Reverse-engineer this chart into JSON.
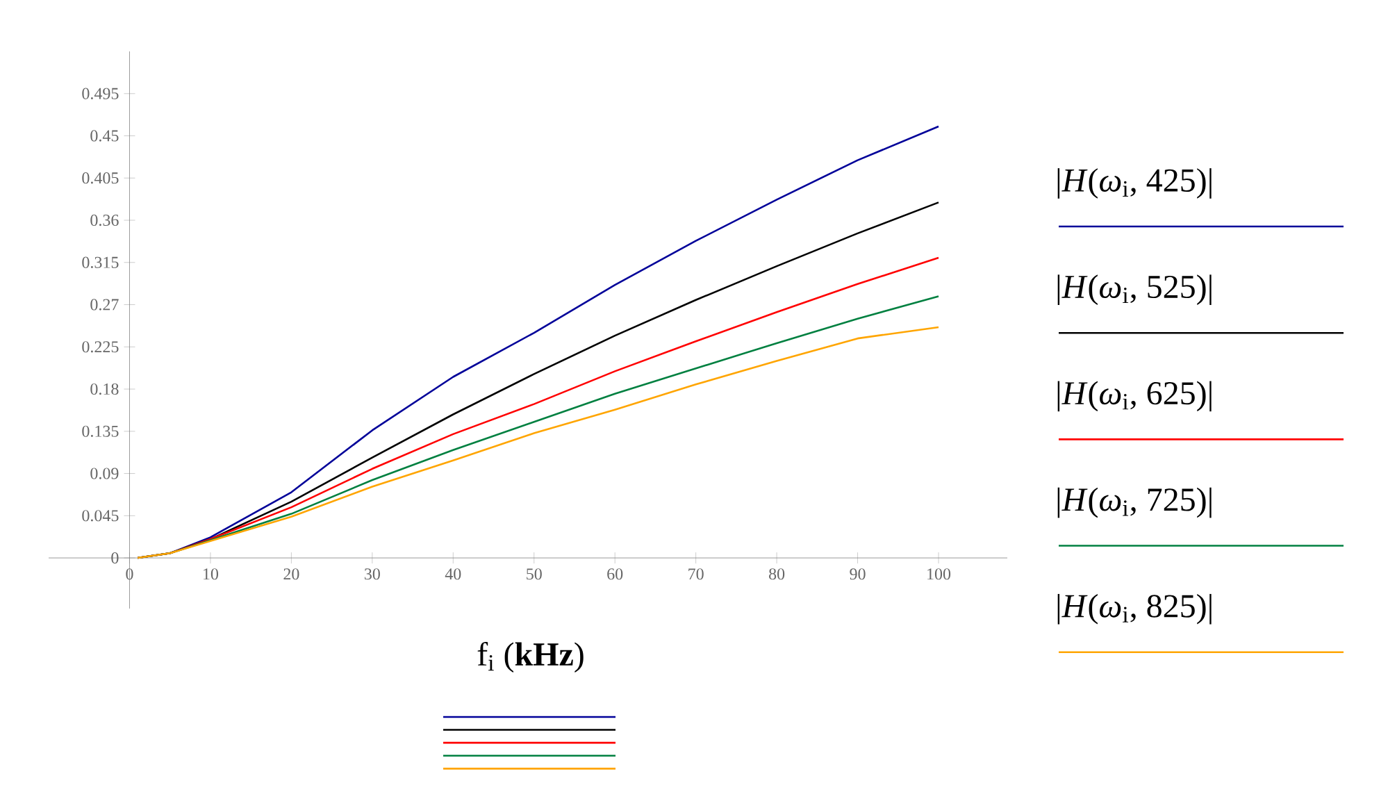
{
  "chart_data": {
    "type": "line",
    "xlabel": "f$_{i}$ (**kHz**)",
    "xlim": [
      -10,
      108.5
    ],
    "ylim": [
      -0.054,
      0.54
    ],
    "xticks": [
      0,
      10,
      20,
      30,
      40,
      50,
      60,
      70,
      80,
      90,
      100
    ],
    "yticks": [
      0,
      0.045,
      0.09,
      0.135,
      0.18,
      0.225,
      0.27,
      0.315,
      0.36,
      0.405,
      0.45,
      0.495
    ],
    "x": [
      1,
      5,
      10,
      20,
      30,
      40,
      50,
      60,
      70,
      80,
      90,
      100
    ],
    "series": [
      {
        "name": "|*H*(*ω*$_{i}$, 425)|",
        "color": "#000099",
        "values": [
          0,
          0.005,
          0.022,
          0.07,
          0.136,
          0.193,
          0.24,
          0.291,
          0.338,
          0.382,
          0.424,
          0.46
        ]
      },
      {
        "name": "|*H*(*ω*$_{i}$, 525)|",
        "color": "#000000",
        "values": [
          0,
          0.005,
          0.02,
          0.06,
          0.107,
          0.153,
          0.196,
          0.237,
          0.275,
          0.311,
          0.346,
          0.379
        ]
      },
      {
        "name": "|*H*(*ω*$_{i}$, 625)|",
        "color": "#ff0000",
        "values": [
          0,
          0.005,
          0.02,
          0.054,
          0.095,
          0.132,
          0.164,
          0.199,
          0.231,
          0.262,
          0.292,
          0.32
        ]
      },
      {
        "name": "|*H*(*ω*$_{i}$, 725)|",
        "color": "#008040",
        "values": [
          0,
          0.005,
          0.019,
          0.047,
          0.083,
          0.115,
          0.145,
          0.175,
          0.202,
          0.229,
          0.255,
          0.279
        ]
      },
      {
        "name": "|*H*(*ω*$_{i}$, 825)|",
        "color": "#ffa500",
        "values": [
          0,
          0.005,
          0.018,
          0.044,
          0.076,
          0.104,
          0.133,
          0.158,
          0.185,
          0.21,
          0.234,
          0.246
        ]
      }
    ],
    "legend": "right",
    "marker": "none",
    "line_style": "solid",
    "grid": false
  }
}
